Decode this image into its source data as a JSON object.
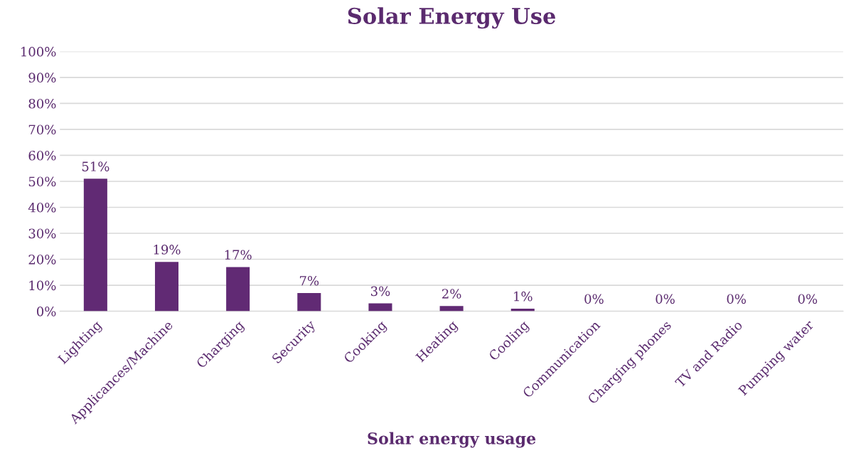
{
  "chart_data": {
    "type": "bar",
    "title": "Solar Energy Use",
    "xlabel": "Solar energy usage",
    "categories": [
      "Lighting",
      "Applicances/Machine",
      "Charging",
      "Security",
      "Cooking",
      "Heating",
      "Cooling",
      "Communication",
      "Charging phones",
      "TV and Radio",
      "Pumping water"
    ],
    "values": [
      51,
      19,
      17,
      7,
      3,
      2,
      1,
      0,
      0,
      0,
      0
    ],
    "value_labels": [
      "51%",
      "19%",
      "17%",
      "7%",
      "3%",
      "2%",
      "1%",
      "0%",
      "0%",
      "0%",
      "0%"
    ],
    "color": "#612a74",
    "ylim": [
      0,
      100
    ],
    "yticks": [
      {
        "value": 0,
        "label": "0%"
      },
      {
        "value": 10,
        "label": "10%"
      },
      {
        "value": 20,
        "label": "20%"
      },
      {
        "value": 30,
        "label": "30%"
      },
      {
        "value": 40,
        "label": "40%"
      },
      {
        "value": 50,
        "label": "50%"
      },
      {
        "value": 60,
        "label": "60%"
      },
      {
        "value": 70,
        "label": "70%"
      },
      {
        "value": 80,
        "label": "80%"
      },
      {
        "value": 90,
        "label": "90%"
      },
      {
        "value": 100,
        "label": "100%"
      }
    ],
    "grid": "y",
    "legend": false
  }
}
